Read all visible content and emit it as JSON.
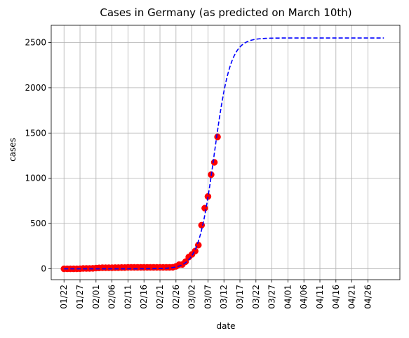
{
  "chart_data": {
    "type": "scatter",
    "title": "Cases in Germany (as predicted on March 10th)",
    "xlabel": "date",
    "ylabel": "cases",
    "x_tick_labels": [
      "01/22",
      "01/27",
      "02/01",
      "02/06",
      "02/11",
      "02/16",
      "02/21",
      "02/26",
      "03/02",
      "03/07",
      "03/12",
      "03/17",
      "03/22",
      "03/27",
      "04/01",
      "04/06",
      "04/11",
      "04/16",
      "04/21",
      "04/26"
    ],
    "y_ticks": [
      0,
      500,
      1000,
      1500,
      2000,
      2500
    ],
    "xlim": [
      "01/18",
      "05/06"
    ],
    "ylim": [
      -120,
      2690
    ],
    "grid": true,
    "colors": {
      "observed": "#ff0000",
      "observed_edge": "#ff0000",
      "fit": "#0000ff"
    },
    "series": [
      {
        "kind": "scatter",
        "x": [
          "01/22",
          "01/23",
          "01/24",
          "01/25",
          "01/26",
          "01/27",
          "01/28",
          "01/29",
          "01/30",
          "01/31",
          "02/01",
          "02/02",
          "02/03",
          "02/04",
          "02/05",
          "02/06",
          "02/07",
          "02/08",
          "02/09",
          "02/10",
          "02/11",
          "02/12",
          "02/13",
          "02/14",
          "02/15",
          "02/16",
          "02/17",
          "02/18",
          "02/19",
          "02/20",
          "02/21",
          "02/22",
          "02/23",
          "02/24",
          "02/25",
          "02/26",
          "02/27",
          "02/28",
          "02/29",
          "03/01",
          "03/02",
          "03/03",
          "03/04",
          "03/05",
          "03/06",
          "03/07",
          "03/08",
          "03/09",
          "03/10"
        ],
        "values": [
          0,
          0,
          0,
          0,
          0,
          1,
          4,
          4,
          4,
          5,
          8,
          10,
          12,
          12,
          12,
          12,
          13,
          13,
          14,
          14,
          16,
          16,
          16,
          16,
          16,
          16,
          16,
          16,
          16,
          16,
          16,
          16,
          16,
          16,
          17,
          27,
          46,
          48,
          79,
          130,
          159,
          196,
          262,
          482,
          670,
          799,
          1040,
          1176,
          1457
        ]
      },
      {
        "kind": "line",
        "style": "dashed",
        "logistic_fit": {
          "K": 2550,
          "midpoint": "03/09",
          "rate_per_day": 0.4,
          "x_start": "01/22",
          "x_end": "05/01"
        }
      }
    ]
  }
}
